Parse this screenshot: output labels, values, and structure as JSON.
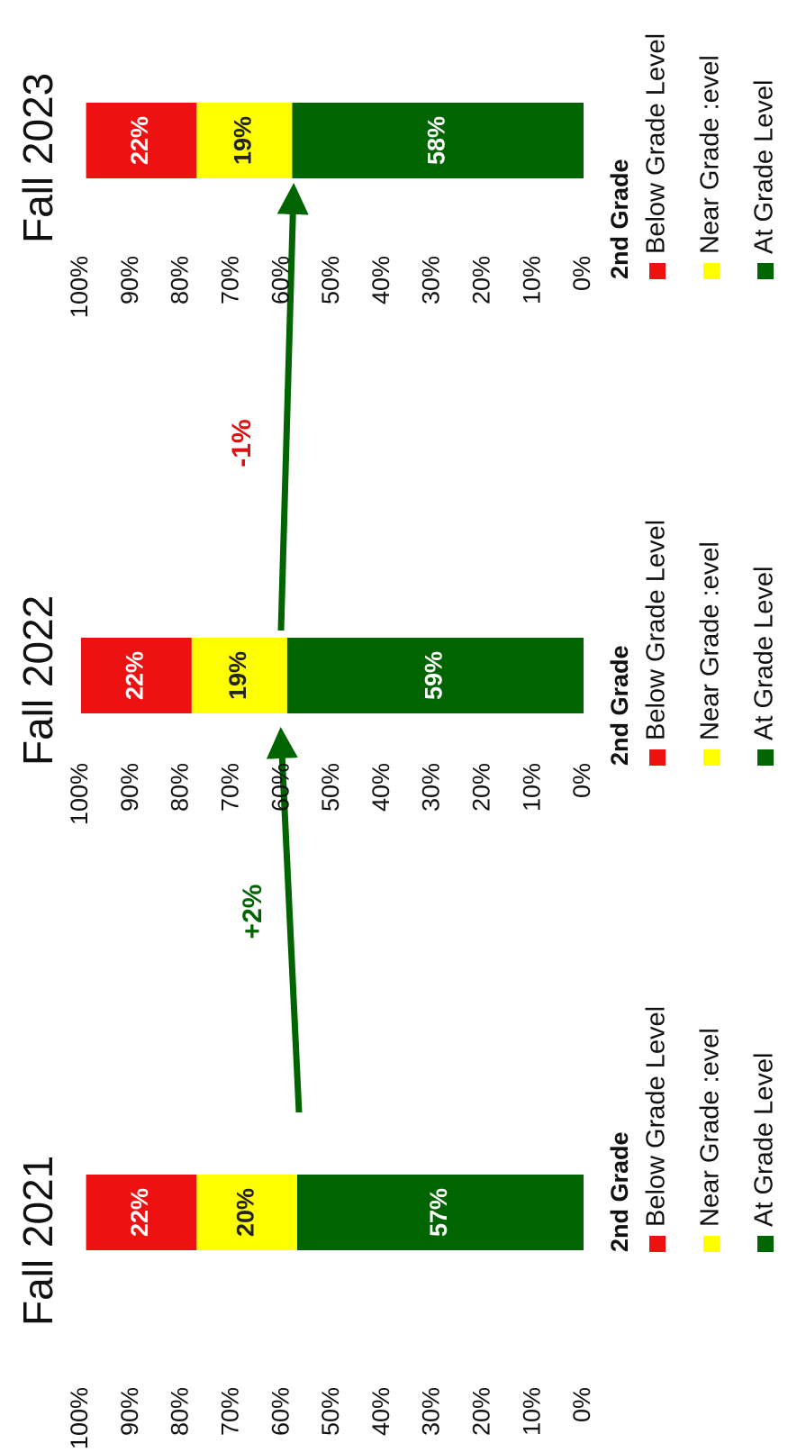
{
  "chart_data": [
    {
      "type": "bar",
      "title": "Fall 2021",
      "legend_title": "2nd Grade",
      "series": [
        {
          "name": "Below Grade Level",
          "color": "#ee1111",
          "values": [
            22
          ],
          "value_labels": [
            "22%"
          ]
        },
        {
          "name": "Near Grade :evel",
          "color": "#ffff00",
          "values": [
            20
          ],
          "value_labels": [
            "20%"
          ]
        },
        {
          "name": "At Grade Level",
          "color": "#006400",
          "values": [
            57
          ],
          "value_labels": [
            "57%"
          ]
        }
      ],
      "ylim": [
        0,
        100
      ],
      "yticks": [
        {
          "value": 0,
          "label": "0%"
        },
        {
          "value": 10,
          "label": "10%"
        },
        {
          "value": 20,
          "label": "20%"
        },
        {
          "value": 30,
          "label": "30%"
        },
        {
          "value": 40,
          "label": "40%"
        },
        {
          "value": 50,
          "label": "50%"
        },
        {
          "value": 60,
          "label": "60%"
        },
        {
          "value": 70,
          "label": "70%"
        },
        {
          "value": 80,
          "label": "80%"
        },
        {
          "value": 90,
          "label": "90%"
        },
        {
          "value": 100,
          "label": "100%"
        }
      ]
    },
    {
      "type": "bar",
      "title": "Fall 2022",
      "legend_title": "2nd Grade",
      "series": [
        {
          "name": "Below Grade Level",
          "color": "#ee1111",
          "values": [
            22
          ],
          "value_labels": [
            "22%"
          ]
        },
        {
          "name": "Near Grade :evel",
          "color": "#ffff00",
          "values": [
            19
          ],
          "value_labels": [
            "19%"
          ]
        },
        {
          "name": "At Grade Level",
          "color": "#006400",
          "values": [
            59
          ],
          "value_labels": [
            "59%"
          ]
        }
      ],
      "ylim": [
        0,
        100
      ],
      "yticks": [
        {
          "value": 0,
          "label": "0%"
        },
        {
          "value": 10,
          "label": "10%"
        },
        {
          "value": 20,
          "label": "20%"
        },
        {
          "value": 30,
          "label": "30%"
        },
        {
          "value": 40,
          "label": "40%"
        },
        {
          "value": 50,
          "label": "50%"
        },
        {
          "value": 60,
          "label": "60%"
        },
        {
          "value": 70,
          "label": "70%"
        },
        {
          "value": 80,
          "label": "80%"
        },
        {
          "value": 90,
          "label": "90%"
        },
        {
          "value": 100,
          "label": "100%"
        }
      ]
    },
    {
      "type": "bar",
      "title": "Fall 2023",
      "legend_title": "2nd Grade",
      "series": [
        {
          "name": "Below Grade Level",
          "color": "#ee1111",
          "values": [
            22
          ],
          "value_labels": [
            "22%"
          ]
        },
        {
          "name": "Near Grade :evel",
          "color": "#ffff00",
          "values": [
            19
          ],
          "value_labels": [
            "19%"
          ]
        },
        {
          "name": "At Grade Level",
          "color": "#006400",
          "values": [
            58
          ],
          "value_labels": [
            "58%"
          ]
        }
      ],
      "ylim": [
        0,
        100
      ],
      "yticks": [
        {
          "value": 0,
          "label": "0%"
        },
        {
          "value": 10,
          "label": "10%"
        },
        {
          "value": 20,
          "label": "20%"
        },
        {
          "value": 30,
          "label": "30%"
        },
        {
          "value": 40,
          "label": "40%"
        },
        {
          "value": 50,
          "label": "50%"
        },
        {
          "value": 60,
          "label": "60%"
        },
        {
          "value": 70,
          "label": "70%"
        },
        {
          "value": 80,
          "label": "80%"
        },
        {
          "value": 90,
          "label": "90%"
        },
        {
          "value": 100,
          "label": "100%"
        }
      ]
    }
  ],
  "annotations": [
    {
      "text": "+2%",
      "color": "#006400"
    },
    {
      "text": "-1%",
      "color": "#dd1111"
    }
  ]
}
